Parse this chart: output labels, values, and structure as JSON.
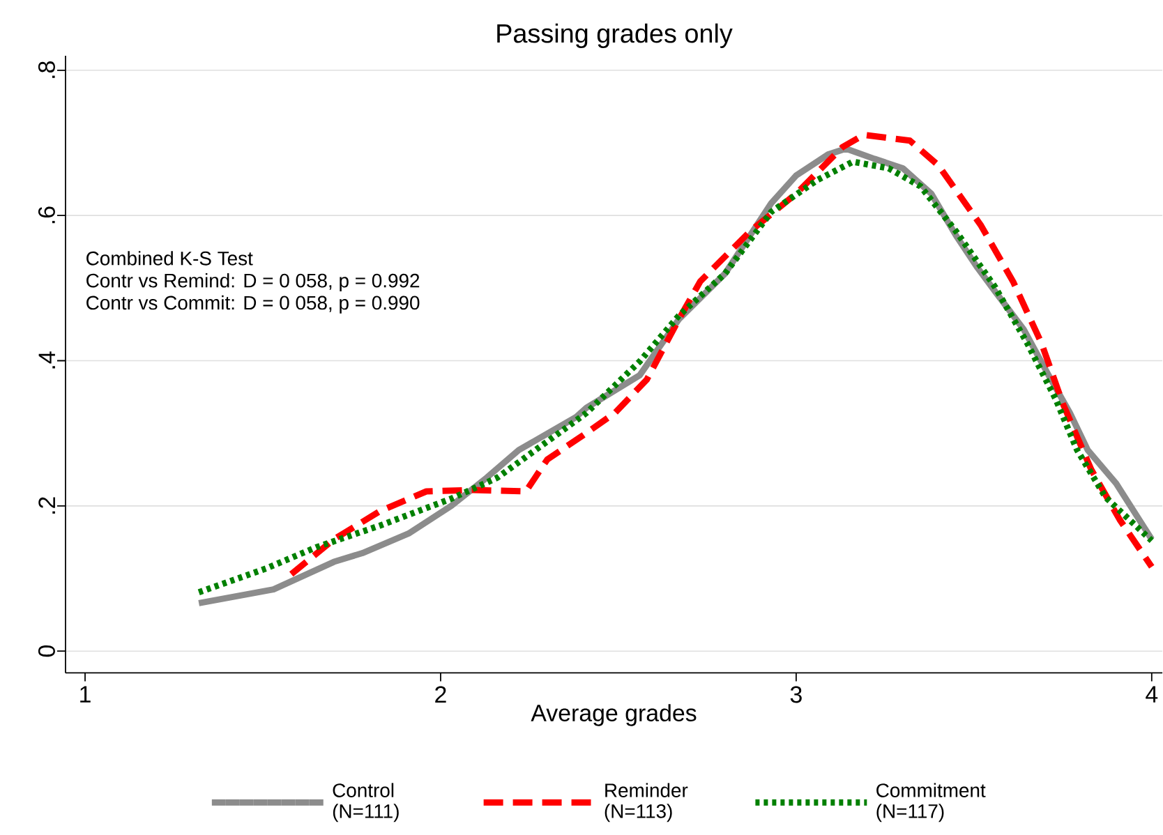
{
  "chart_data": {
    "type": "line",
    "title": "Passing grades only",
    "xlabel": "Average grades",
    "xlim": [
      0.945,
      4.03
    ],
    "ylim": [
      -0.03,
      0.82
    ],
    "xticks": [
      1,
      2,
      3,
      4
    ],
    "yticks": [
      0,
      {
        "value": 0.2,
        "label": ".2"
      },
      {
        "value": 0.4,
        "label": ".4"
      },
      {
        "value": 0.6,
        "label": ".6"
      },
      {
        "value": 0.8,
        "label": ".8"
      }
    ],
    "grid": "y",
    "legend": "bottom",
    "marker": "none",
    "annotations": [
      "Combined K-S Test",
      "Contr vs Remind: D = 0 058, p = 0.992",
      "Contr vs Commit: D = 0 058, p = 0.990"
    ],
    "series": [
      {
        "name": "Control (N=111)",
        "color": "#8c8c8c",
        "line_style": "solid",
        "x": [
          1.32,
          1.53,
          1.7,
          1.78,
          1.91,
          2.03,
          2.13,
          2.22,
          2.38,
          2.41,
          2.56,
          2.67,
          2.8,
          2.93,
          3.0,
          3.09,
          3.14,
          3.22,
          3.3,
          3.38,
          3.45,
          3.51,
          3.56,
          3.64,
          3.71,
          3.77,
          3.82,
          3.9,
          4.0
        ],
        "values": [
          0.066,
          0.085,
          0.123,
          0.135,
          0.162,
          0.2,
          0.239,
          0.277,
          0.322,
          0.335,
          0.38,
          0.457,
          0.52,
          0.617,
          0.655,
          0.684,
          0.692,
          0.678,
          0.665,
          0.63,
          0.572,
          0.528,
          0.495,
          0.443,
          0.38,
          0.328,
          0.277,
          0.231,
          0.154
        ]
      },
      {
        "name": "Reminder (N=113)",
        "color": "#ff0000",
        "line_style": "dashed",
        "x": [
          1.58,
          1.7,
          1.83,
          1.96,
          2.09,
          2.24,
          2.3,
          2.4,
          2.49,
          2.58,
          2.67,
          2.73,
          2.87,
          3.0,
          3.13,
          3.19,
          3.32,
          3.4,
          3.52,
          3.61,
          3.69,
          3.75,
          3.83,
          3.91,
          4.0
        ],
        "values": [
          0.106,
          0.154,
          0.193,
          0.22,
          0.222,
          0.22,
          0.264,
          0.297,
          0.328,
          0.374,
          0.457,
          0.509,
          0.578,
          0.63,
          0.694,
          0.711,
          0.703,
          0.669,
          0.586,
          0.509,
          0.424,
          0.341,
          0.25,
          0.181,
          0.116
        ]
      },
      {
        "name": "Commitment (N=117)",
        "color": "#008000",
        "line_style": "dotted",
        "x": [
          1.32,
          1.51,
          1.65,
          1.83,
          2.03,
          2.16,
          2.36,
          2.41,
          2.56,
          2.67,
          2.8,
          2.93,
          3.06,
          3.16,
          3.26,
          3.35,
          3.45,
          3.56,
          3.65,
          3.73,
          3.79,
          3.87,
          4.0
        ],
        "values": [
          0.081,
          0.114,
          0.143,
          0.173,
          0.21,
          0.239,
          0.31,
          0.328,
          0.399,
          0.462,
          0.52,
          0.605,
          0.649,
          0.674,
          0.665,
          0.64,
          0.578,
          0.501,
          0.424,
          0.347,
          0.277,
          0.212,
          0.152
        ]
      }
    ]
  }
}
